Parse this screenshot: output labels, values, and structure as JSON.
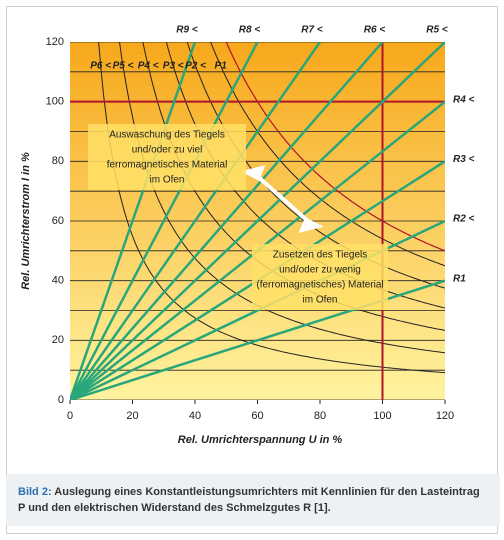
{
  "chart_data": {
    "type": "characteristic",
    "x_label": "Rel. Umrichterspannung U in %",
    "y_label": "Rel. Umrichterstrom I in %",
    "xlim": [
      0,
      120
    ],
    "ylim": [
      0,
      120
    ],
    "xticks": [
      0,
      20,
      40,
      60,
      80,
      100,
      120
    ],
    "yticks": [
      0,
      20,
      40,
      60,
      80,
      100,
      120
    ],
    "yminor": [
      10,
      30,
      50,
      70,
      90,
      110
    ],
    "ref_x": 100,
    "ref_y": 100,
    "ref_color": "#b0132a",
    "line_color": "#2aa77a",
    "curve_color": "#222222",
    "resistance_lines": [
      {
        "name": "R1",
        "end": [
          120,
          40
        ]
      },
      {
        "name": "R2 <",
        "end": [
          120,
          60
        ]
      },
      {
        "name": "R3 <",
        "end": [
          120,
          80
        ]
      },
      {
        "name": "R4 <",
        "end": [
          120,
          100
        ]
      },
      {
        "name": "R5 <",
        "end": [
          120,
          120
        ]
      },
      {
        "name": "R6 <",
        "end": [
          100,
          120
        ]
      },
      {
        "name": "R7 <",
        "end": [
          80,
          120
        ]
      },
      {
        "name": "R8 <",
        "end": [
          60,
          120
        ]
      },
      {
        "name": "R9 <",
        "end": [
          40,
          120
        ]
      }
    ],
    "power_curves": [
      {
        "name": "P6 <",
        "power": 1100
      },
      {
        "name": "P5 <",
        "power": 1900
      },
      {
        "name": "P4 <",
        "power": 2800
      },
      {
        "name": "P3 <",
        "power": 3700
      },
      {
        "name": "P2 <",
        "power": 4500
      },
      {
        "name": "P1",
        "power": 5400
      }
    ],
    "red_curve": {
      "power": 6000
    },
    "annotations": [
      [
        "Auswaschung des Tiegels",
        "und/oder zu viel",
        "ferromagnetisches Material",
        "im Ofen"
      ],
      [
        "Zusetzen des Tiegels",
        "und/oder zu wenig",
        "(ferromagnetisches) Material",
        "im Ofen"
      ]
    ]
  },
  "caption": {
    "label": "Bild 2:",
    "text": "Auslegung eines Konstantleistungsumrichters mit Kennlinien für den Lasteintrag P und den elektrischen Widerstand des Schmelzgutes R [1]."
  }
}
